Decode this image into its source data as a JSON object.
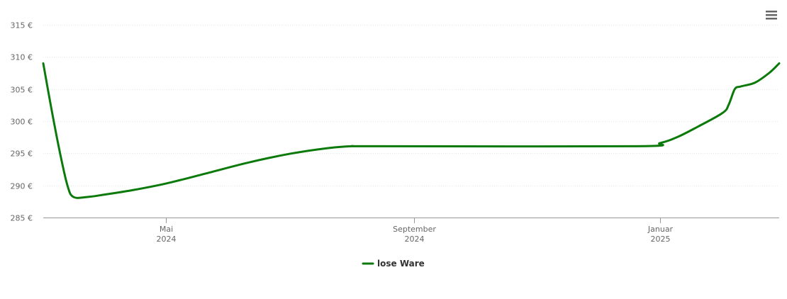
{
  "chart_data": {
    "type": "line",
    "currency_suffix": " €",
    "x_start": "2024-03-01",
    "x_end": "2025-03-01",
    "y_ticks": [
      285,
      290,
      295,
      300,
      305,
      310,
      315
    ],
    "ylim": [
      285,
      315
    ],
    "x_ticks": [
      {
        "date": "2024-05-01",
        "month": "Mai",
        "year": "2024"
      },
      {
        "date": "2024-09-01",
        "month": "September",
        "year": "2024"
      },
      {
        "date": "2025-01-01",
        "month": "Januar",
        "year": "2025"
      }
    ],
    "legend_position": "bottom-center",
    "grid": true,
    "series": [
      {
        "name": "lose Ware",
        "color": "#0b7a0b",
        "points": [
          [
            "2024-03-01",
            309.0
          ],
          [
            "2024-03-05",
            302.0
          ],
          [
            "2024-03-09",
            295.5
          ],
          [
            "2024-03-13",
            290.0
          ],
          [
            "2024-03-16",
            288.2
          ],
          [
            "2024-03-23",
            288.2
          ],
          [
            "2024-04-01",
            288.6
          ],
          [
            "2024-04-15",
            289.3
          ],
          [
            "2024-05-01",
            290.3
          ],
          [
            "2024-05-20",
            291.8
          ],
          [
            "2024-06-10",
            293.5
          ],
          [
            "2024-07-01",
            294.9
          ],
          [
            "2024-07-20",
            295.8
          ],
          [
            "2024-08-01",
            296.1
          ],
          [
            "2024-08-15",
            296.1
          ],
          [
            "2024-12-20",
            296.1
          ],
          [
            "2025-01-01",
            296.6
          ],
          [
            "2025-01-10",
            297.6
          ],
          [
            "2025-01-20",
            299.2
          ],
          [
            "2025-02-01",
            301.3
          ],
          [
            "2025-02-04",
            302.6
          ],
          [
            "2025-02-07",
            305.0
          ],
          [
            "2025-02-10",
            305.4
          ],
          [
            "2025-02-17",
            306.0
          ],
          [
            "2025-02-24",
            307.5
          ],
          [
            "2025-03-01",
            309.0
          ]
        ]
      }
    ]
  },
  "menu": {
    "icon": "hamburger-menu-icon"
  }
}
